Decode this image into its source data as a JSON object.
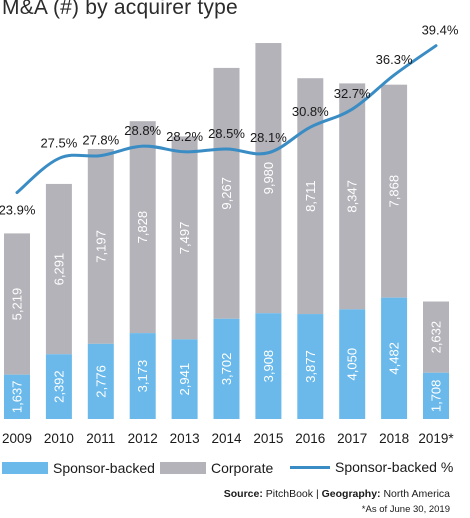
{
  "title": "M&A (#) by acquirer type",
  "chart_data": {
    "type": "bar",
    "stacked": true,
    "categories": [
      "2009",
      "2010",
      "2011",
      "2012",
      "2013",
      "2014",
      "2015",
      "2016",
      "2017",
      "2018",
      "2019*"
    ],
    "series": [
      {
        "name": "Sponsor-backed",
        "color": "#6ab9ea",
        "values": [
          1637,
          2392,
          2776,
          3173,
          2941,
          3702,
          3908,
          3877,
          4050,
          4482,
          1708
        ],
        "labels": [
          "1,637",
          "2,392",
          "2,776",
          "3,173",
          "2,941",
          "3,702",
          "3,908",
          "3,877",
          "4,050",
          "4,482",
          "1,708"
        ]
      },
      {
        "name": "Corporate",
        "color": "#b3b3b9",
        "values": [
          5219,
          6291,
          7197,
          7828,
          7497,
          9267,
          9980,
          8711,
          8347,
          7868,
          2632
        ],
        "labels": [
          "5,219",
          "6,291",
          "7,197",
          "7,828",
          "7,497",
          "9,267",
          "9,980",
          "8,711",
          "8,347",
          "7,868",
          "2,632"
        ]
      }
    ],
    "line": {
      "name": "Sponsor-backed %",
      "color": "#3a8cc4",
      "values": [
        23.9,
        27.5,
        27.8,
        28.8,
        28.2,
        28.5,
        28.1,
        30.8,
        32.7,
        36.3,
        39.4
      ],
      "labels": [
        "23.9%",
        "27.5%",
        "27.8%",
        "28.8%",
        "28.2%",
        "28.5%",
        "28.1%",
        "30.8%",
        "32.7%",
        "36.3%",
        "39.4%"
      ]
    },
    "ylim_bars": [
      0,
      14000
    ],
    "ylim_line": [
      0,
      40
    ]
  },
  "legend": [
    {
      "label": "Sponsor-backed",
      "color": "#6ab9ea",
      "kind": "box"
    },
    {
      "label": "Corporate",
      "color": "#b3b3b9",
      "kind": "box"
    },
    {
      "label": "Sponsor-backed %",
      "color": "#3a8cc4",
      "kind": "line"
    }
  ],
  "source": {
    "label": "Source:",
    "text": "PitchBook",
    "sep": "|",
    "geo_label": "Geography:",
    "geo_text": "North America"
  },
  "note": "*As of June 30, 2019"
}
